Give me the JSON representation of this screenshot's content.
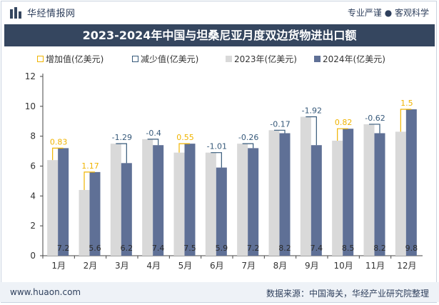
{
  "header": {
    "brand": "华经情报网",
    "slogan": "专业严谨 ● 客观科学"
  },
  "chart_data": {
    "type": "bar",
    "title": "2023-2024年中国与坦桑尼亚月度双边货物进出口额",
    "categories": [
      "1月",
      "2月",
      "3月",
      "4月",
      "5月",
      "6月",
      "7月",
      "8月",
      "9月",
      "10月",
      "11月",
      "12月"
    ],
    "series": [
      {
        "name": "2023年(亿美元)",
        "color": "#d9d9d9",
        "values": [
          6.4,
          4.4,
          7.5,
          7.8,
          6.9,
          6.9,
          7.5,
          8.4,
          9.3,
          7.7,
          8.8,
          8.3
        ]
      },
      {
        "name": "2024年(亿美元)",
        "color": "#5f7096",
        "values": [
          7.2,
          5.6,
          6.2,
          7.4,
          7.5,
          5.9,
          7.2,
          8.2,
          7.4,
          8.5,
          8.2,
          9.8
        ]
      }
    ],
    "changes": [
      "0.83",
      "1.17",
      "-1.29",
      "-0.4",
      "0.55",
      "-1.01",
      "-0.26",
      "-0.17",
      "-1.92",
      "0.82",
      "-0.62",
      "1.5"
    ],
    "legend": {
      "increase": "增加值(亿美元)",
      "decrease": "减少值(亿美元)"
    },
    "colors": {
      "increase": "#f0b400",
      "decrease": "#36597a",
      "axis_text": "#333333"
    },
    "ylim": [
      0,
      12
    ],
    "yticks": [
      "0",
      "2",
      "4",
      "6",
      "8",
      "10",
      "12"
    ],
    "grid": false,
    "legend_position": "top"
  },
  "footer": {
    "website": "www.huaon.com",
    "source": "数据来源：中国海关，华经产业研究院整理"
  }
}
